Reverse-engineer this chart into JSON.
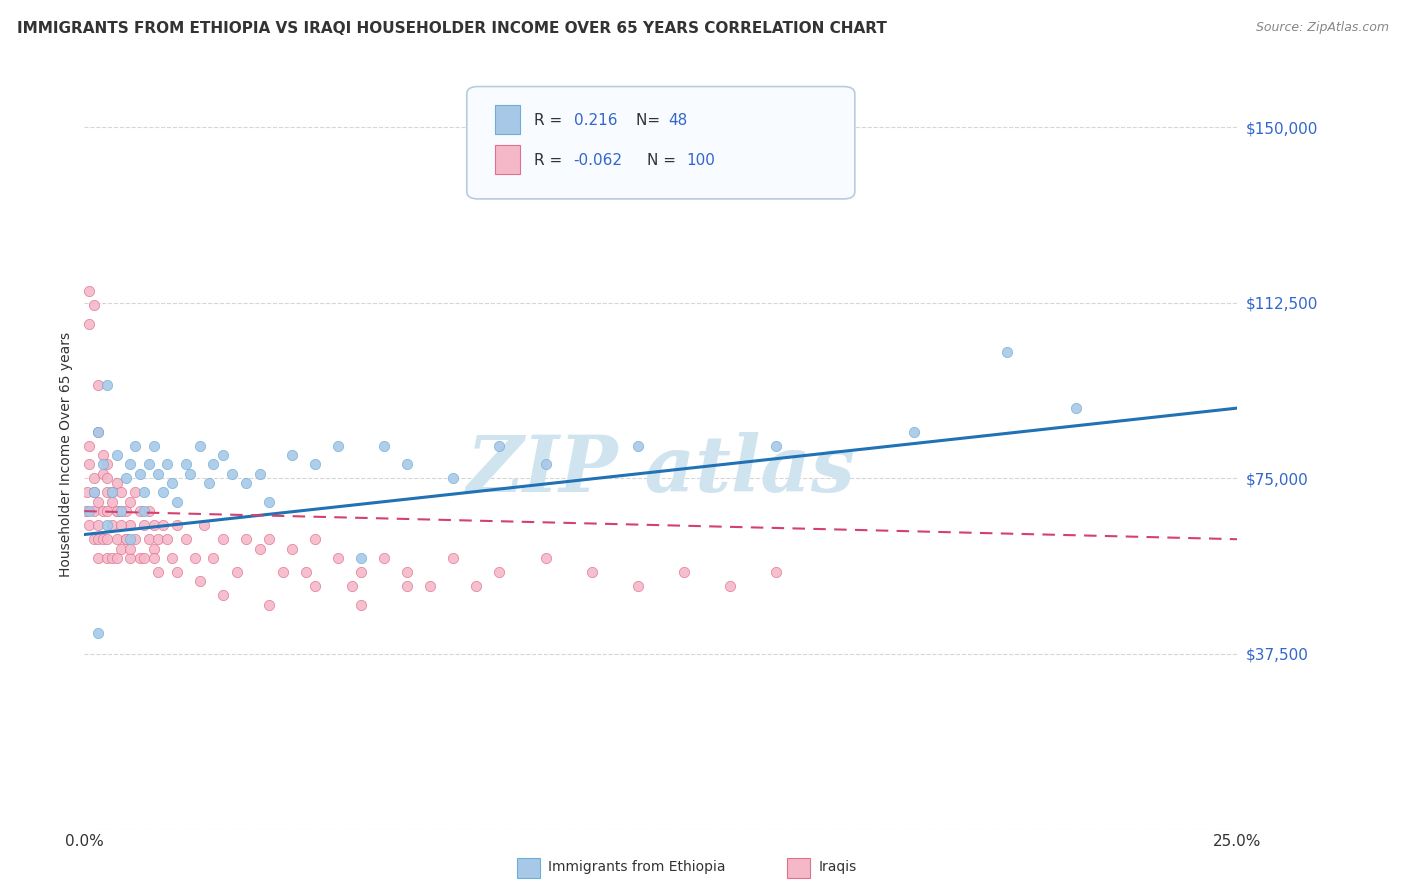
{
  "title": "IMMIGRANTS FROM ETHIOPIA VS IRAQI HOUSEHOLDER INCOME OVER 65 YEARS CORRELATION CHART",
  "source": "Source: ZipAtlas.com",
  "ylabel": "Householder Income Over 65 years",
  "xmin": 0.0,
  "xmax": 0.25,
  "ymin": 0,
  "ymax": 160000,
  "yticks": [
    0,
    37500,
    75000,
    112500,
    150000
  ],
  "ytick_labels": [
    "",
    "$37,500",
    "$75,000",
    "$112,500",
    "$150,000"
  ],
  "xtick_labels": [
    "0.0%",
    "",
    "",
    "",
    "",
    "25.0%"
  ],
  "blue_color": "#a8c8e8",
  "blue_edge_color": "#6baed6",
  "pink_color": "#f4b8c8",
  "pink_edge_color": "#e07090",
  "blue_line_color": "#2171b5",
  "pink_line_color": "#d44070",
  "watermark_color": "#d0e4f0",
  "background_color": "#ffffff",
  "grid_color": "#cccccc",
  "legend_box_color": "#f0f4f8",
  "legend_border_color": "#b0c4d8",
  "eth_x": [
    0.001,
    0.002,
    0.003,
    0.004,
    0.005,
    0.005,
    0.006,
    0.007,
    0.008,
    0.009,
    0.01,
    0.01,
    0.011,
    0.012,
    0.013,
    0.013,
    0.014,
    0.015,
    0.016,
    0.017,
    0.018,
    0.019,
    0.02,
    0.022,
    0.023,
    0.025,
    0.027,
    0.028,
    0.03,
    0.032,
    0.035,
    0.038,
    0.04,
    0.045,
    0.05,
    0.055,
    0.06,
    0.065,
    0.07,
    0.08,
    0.09,
    0.1,
    0.12,
    0.15,
    0.18,
    0.2,
    0.215,
    0.003
  ],
  "eth_y": [
    68000,
    72000,
    85000,
    78000,
    65000,
    95000,
    72000,
    80000,
    68000,
    75000,
    78000,
    62000,
    82000,
    76000,
    72000,
    68000,
    78000,
    82000,
    76000,
    72000,
    78000,
    74000,
    70000,
    78000,
    76000,
    82000,
    74000,
    78000,
    80000,
    76000,
    74000,
    76000,
    70000,
    80000,
    78000,
    82000,
    58000,
    82000,
    78000,
    75000,
    82000,
    78000,
    82000,
    82000,
    85000,
    102000,
    90000,
    42000
  ],
  "iraq_x": [
    0.0003,
    0.0005,
    0.001,
    0.001,
    0.001,
    0.002,
    0.002,
    0.002,
    0.002,
    0.003,
    0.003,
    0.003,
    0.003,
    0.004,
    0.004,
    0.004,
    0.005,
    0.005,
    0.005,
    0.005,
    0.005,
    0.006,
    0.006,
    0.006,
    0.007,
    0.007,
    0.007,
    0.007,
    0.008,
    0.008,
    0.008,
    0.009,
    0.009,
    0.01,
    0.01,
    0.01,
    0.011,
    0.011,
    0.012,
    0.012,
    0.013,
    0.013,
    0.014,
    0.014,
    0.015,
    0.015,
    0.016,
    0.016,
    0.017,
    0.018,
    0.019,
    0.02,
    0.022,
    0.024,
    0.026,
    0.028,
    0.03,
    0.033,
    0.035,
    0.038,
    0.04,
    0.043,
    0.045,
    0.048,
    0.05,
    0.055,
    0.058,
    0.06,
    0.065,
    0.07,
    0.075,
    0.08,
    0.085,
    0.09,
    0.1,
    0.11,
    0.12,
    0.13,
    0.14,
    0.15,
    0.001,
    0.001,
    0.002,
    0.003,
    0.003,
    0.004,
    0.005,
    0.006,
    0.007,
    0.008,
    0.009,
    0.01,
    0.015,
    0.02,
    0.025,
    0.03,
    0.04,
    0.05,
    0.06,
    0.07
  ],
  "iraq_y": [
    68000,
    72000,
    78000,
    82000,
    65000,
    72000,
    68000,
    62000,
    75000,
    70000,
    65000,
    58000,
    62000,
    76000,
    68000,
    62000,
    78000,
    68000,
    62000,
    58000,
    72000,
    72000,
    65000,
    58000,
    74000,
    68000,
    62000,
    58000,
    68000,
    72000,
    60000,
    68000,
    62000,
    70000,
    65000,
    58000,
    72000,
    62000,
    68000,
    58000,
    65000,
    58000,
    68000,
    62000,
    65000,
    60000,
    62000,
    55000,
    65000,
    62000,
    58000,
    65000,
    62000,
    58000,
    65000,
    58000,
    62000,
    55000,
    62000,
    60000,
    62000,
    55000,
    60000,
    55000,
    62000,
    58000,
    52000,
    55000,
    58000,
    55000,
    52000,
    58000,
    52000,
    55000,
    58000,
    55000,
    52000,
    55000,
    52000,
    55000,
    115000,
    108000,
    112000,
    95000,
    85000,
    80000,
    75000,
    70000,
    68000,
    65000,
    62000,
    60000,
    58000,
    55000,
    53000,
    50000,
    48000,
    52000,
    48000,
    52000
  ],
  "eth_trendline": [
    63000,
    90000
  ],
  "iraq_trendline": [
    68000,
    62000
  ]
}
